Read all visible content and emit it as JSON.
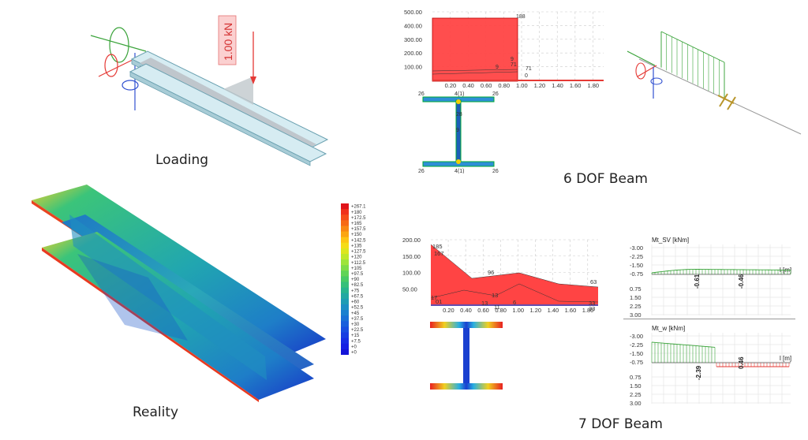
{
  "captions": {
    "loading": "Loading",
    "reality": "Reality",
    "six_dof": "6 DOF Beam",
    "seven_dof": "7 DOF Beam"
  },
  "load_label": "1.00 kN",
  "legend": {
    "values": [
      "+267.1",
      "+180",
      "+172.5",
      "+165",
      "+157.5",
      "+150",
      "+142.5",
      "+135",
      "+127.5",
      "+120",
      "+112.5",
      "+105",
      "+97.5",
      "+90",
      "+82.5",
      "+75",
      "+67.5",
      "+60",
      "+52.5",
      "+45",
      "+37.5",
      "+30",
      "+22.5",
      "+15",
      "+7.5",
      "+0",
      "+0"
    ],
    "colors": [
      "#e0141a",
      "#f0301a",
      "#f54d18",
      "#f76a14",
      "#f98812",
      "#fba612",
      "#fdc514",
      "#f5dc18",
      "#dde61e",
      "#bfe82a",
      "#9ee43a",
      "#7edc48",
      "#5fd456",
      "#47ca66",
      "#35c07a",
      "#28b48e",
      "#22a8a2",
      "#1e9cb4",
      "#1c8ec4",
      "#1b80cf",
      "#1a70d6",
      "#195fdc",
      "#184ee0",
      "#173de2",
      "#162de4",
      "#151fe4",
      "#1414d8"
    ]
  },
  "chart_6dof": {
    "y_ticks": [
      "500.00",
      "400.00",
      "300.00",
      "200.00",
      "100.00"
    ],
    "x_ticks": [
      "0.20",
      "0.40",
      "0.60",
      "0.80",
      "1.00",
      "1.20",
      "1.40",
      "1.60",
      "1.80"
    ],
    "point_labels": [
      "188",
      "9",
      "71",
      "9",
      "71",
      "0"
    ],
    "section_labels": [
      "26",
      "4(1)",
      "26",
      "28",
      "9",
      "26",
      "4(1)",
      "26"
    ]
  },
  "chart_7dof": {
    "y_ticks": [
      "200.00",
      "150.00",
      "100.00",
      "50.00"
    ],
    "x_ticks": [
      "0.20",
      "0.40",
      "0.60",
      "0.80",
      "1.00",
      "1.20",
      "1.40",
      "1.60",
      "1.80"
    ],
    "point_labels": [
      "185",
      "167",
      "96",
      "63",
      "17",
      "01",
      "13",
      "13",
      "11",
      "6",
      "33",
      "33"
    ]
  },
  "chart_mt_sv": {
    "title": "Mt_SV [kNm]",
    "axis": "l [m]",
    "y_ticks": [
      "-3.00",
      "-2.25",
      "-1.50",
      "-0.75",
      "0.75",
      "1.50",
      "2.25",
      "3.00"
    ],
    "values": [
      "-0.61",
      "-0.46"
    ]
  },
  "chart_mt_w": {
    "title": "Mt_w [kNm]",
    "axis": "l [m]",
    "y_ticks": [
      "-3.00",
      "-2.25",
      "-1.50",
      "-0.75",
      "0.75",
      "1.50",
      "2.25",
      "3.00"
    ],
    "values": [
      "-2.39",
      "0.46"
    ]
  }
}
